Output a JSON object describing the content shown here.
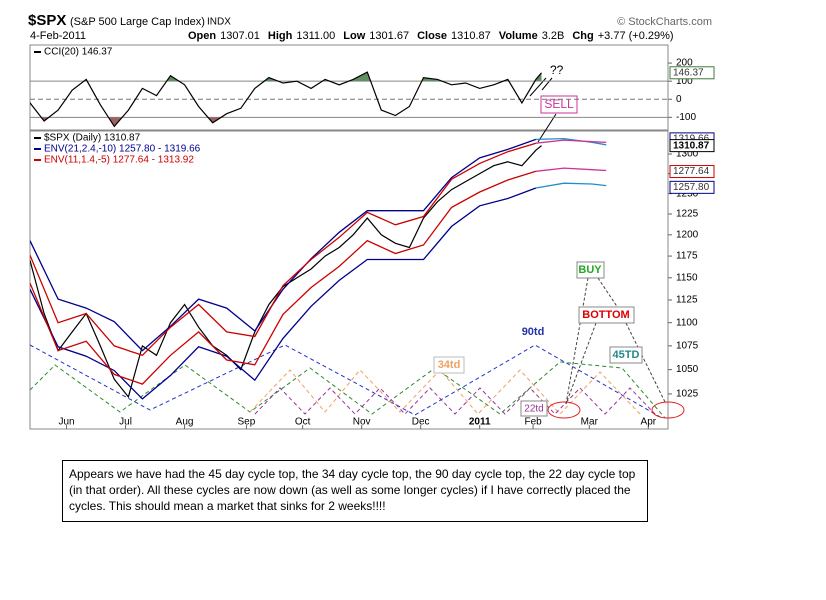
{
  "header": {
    "symbol": "$SPX",
    "name": "(S&P 500 Large Cap Index)",
    "exchange": "INDX",
    "copyright": "© StockCharts.com",
    "date": "4-Feb-2011",
    "quote": [
      {
        "label": "Open",
        "value": "1307.01"
      },
      {
        "label": "High",
        "value": "1311.00"
      },
      {
        "label": "Low",
        "value": "1301.67"
      },
      {
        "label": "Close",
        "value": "1310.87"
      },
      {
        "label": "Volume",
        "value": "3.2B"
      },
      {
        "label": "Chg",
        "value": "+3.77 (+0.29%)"
      }
    ]
  },
  "annotations": {
    "question": "??",
    "sell": "SELL",
    "buy": "BUY",
    "bottom": "BOTTOM",
    "c90": "90td",
    "c34": "34td",
    "c45": "45TD",
    "c22": "22td"
  },
  "note": "Appears we have had the 45 day cycle top, the 34 day cycle top, the 90 day cycle top, the 22 day cycle top (in that order).  All these cycles are now down (as well as some longer cycles) if I have correctly placed the cycles.  This should mean a market that sinks for 2 weeks!!!!",
  "chart_data": [
    {
      "type": "line",
      "xlim": [
        0,
        227
      ],
      "ylim": [
        -170,
        300
      ],
      "yticks": [
        200,
        100,
        0,
        -100
      ],
      "reference_lines": [
        {
          "value": 100,
          "fill": "#5f9160",
          "side": "above"
        },
        {
          "value": 0,
          "dash": true
        },
        {
          "value": -100,
          "fill": "#9a6262",
          "side": "below"
        }
      ],
      "value_boxes": [
        {
          "value": 146.37,
          "label": "146.37",
          "color": "#3a7a3a"
        }
      ],
      "series": [
        {
          "name": "CCI(20) 146.37",
          "color": "#000000",
          "x": [
            0,
            5,
            10,
            15,
            20,
            25,
            30,
            35,
            40,
            45,
            50,
            55,
            60,
            65,
            70,
            75,
            80,
            85,
            90,
            95,
            100,
            105,
            110,
            115,
            120,
            125,
            130,
            135,
            140,
            145,
            150,
            155,
            160,
            165,
            170,
            175,
            180,
            182
          ],
          "values": [
            -20,
            -120,
            -60,
            50,
            110,
            -30,
            -150,
            -60,
            60,
            20,
            130,
            80,
            -40,
            -130,
            -80,
            -50,
            60,
            120,
            90,
            100,
            60,
            110,
            80,
            110,
            150,
            -60,
            -90,
            -40,
            120,
            110,
            80,
            90,
            60,
            80,
            110,
            -20,
            110,
            146.37
          ]
        }
      ]
    },
    {
      "type": "line",
      "log": true,
      "xlim": [
        0,
        227
      ],
      "ylim": [
        990,
        1330
      ],
      "yticks": [
        1300,
        1275,
        1250,
        1225,
        1200,
        1175,
        1150,
        1125,
        1100,
        1075,
        1050,
        1025
      ],
      "xticks": [
        {
          "value": 13,
          "label": "Jun"
        },
        {
          "value": 34,
          "label": "Jul"
        },
        {
          "value": 55,
          "label": "Aug"
        },
        {
          "value": 77,
          "label": "Sep"
        },
        {
          "value": 97,
          "label": "Oct"
        },
        {
          "value": 118,
          "label": "Nov"
        },
        {
          "value": 139,
          "label": "Dec"
        },
        {
          "value": 160,
          "label": "2011",
          "bold": true
        },
        {
          "value": 179,
          "label": "Feb"
        },
        {
          "value": 199,
          "label": "Mar"
        },
        {
          "value": 220,
          "label": "Apr"
        }
      ],
      "value_boxes": [
        {
          "value": 1319.66,
          "label": "1319.66",
          "color": "#00008b"
        },
        {
          "value": 1310.87,
          "label": "1310.87",
          "color": "#000000",
          "bold": true
        },
        {
          "value": 1277.64,
          "label": "1277.64",
          "color": "#cc0000"
        },
        {
          "value": 1257.8,
          "label": "1257.80",
          "color": "#00008b"
        }
      ],
      "series": [
        {
          "name": "$SPX (Daily) 1310.87",
          "color": "#000000",
          "x": [
            0,
            5,
            10,
            15,
            20,
            25,
            30,
            35,
            40,
            45,
            50,
            55,
            60,
            65,
            70,
            75,
            80,
            85,
            90,
            95,
            100,
            105,
            110,
            115,
            120,
            125,
            130,
            135,
            140,
            145,
            150,
            155,
            160,
            165,
            170,
            175,
            180,
            182
          ],
          "values": [
            1170,
            1110,
            1070,
            1090,
            1110,
            1075,
            1040,
            1022,
            1075,
            1065,
            1100,
            1120,
            1095,
            1075,
            1065,
            1050,
            1090,
            1120,
            1140,
            1150,
            1160,
            1175,
            1185,
            1200,
            1220,
            1200,
            1190,
            1185,
            1220,
            1240,
            1255,
            1265,
            1275,
            1285,
            1290,
            1285,
            1305,
            1310.87
          ]
        },
        {
          "name": "ENV(21,2.4,-10) 1257.80 - 1319.66",
          "color": "#00008b",
          "projection_color": "#1e90c8",
          "x": [
            0,
            10,
            20,
            30,
            40,
            50,
            60,
            70,
            80,
            90,
            100,
            110,
            120,
            130,
            140,
            150,
            160,
            170,
            180,
            190,
            200,
            205
          ],
          "upper": [
            1193,
            1126,
            1116,
            1101,
            1070,
            1096,
            1126,
            1116,
            1091,
            1137,
            1172,
            1203,
            1229,
            1229,
            1229,
            1270,
            1295,
            1306,
            1319,
            1320,
            1315,
            1312
          ],
          "lower": [
            1137,
            1074,
            1064,
            1049,
            1020,
            1044,
            1074,
            1064,
            1039,
            1083,
            1118,
            1147,
            1171,
            1171,
            1171,
            1210,
            1235,
            1244,
            1257,
            1263,
            1262,
            1260
          ]
        },
        {
          "name": "ENV(11,1.4,-5) 1277.64 - 1313.92",
          "color": "#cc0000",
          "projection_color": "#cc3399",
          "x": [
            0,
            10,
            20,
            30,
            40,
            50,
            60,
            70,
            80,
            90,
            100,
            110,
            120,
            130,
            140,
            150,
            160,
            170,
            180,
            190,
            200,
            205
          ],
          "upper": [
            1176,
            1100,
            1110,
            1075,
            1065,
            1095,
            1120,
            1090,
            1085,
            1141,
            1171,
            1197,
            1227,
            1212,
            1222,
            1268,
            1288,
            1303,
            1314,
            1318,
            1316,
            1315
          ],
          "lower": [
            1144,
            1070,
            1080,
            1045,
            1035,
            1065,
            1090,
            1060,
            1055,
            1109,
            1139,
            1163,
            1193,
            1178,
            1188,
            1233,
            1252,
            1267,
            1278,
            1282,
            1280,
            1279
          ]
        }
      ]
    }
  ]
}
